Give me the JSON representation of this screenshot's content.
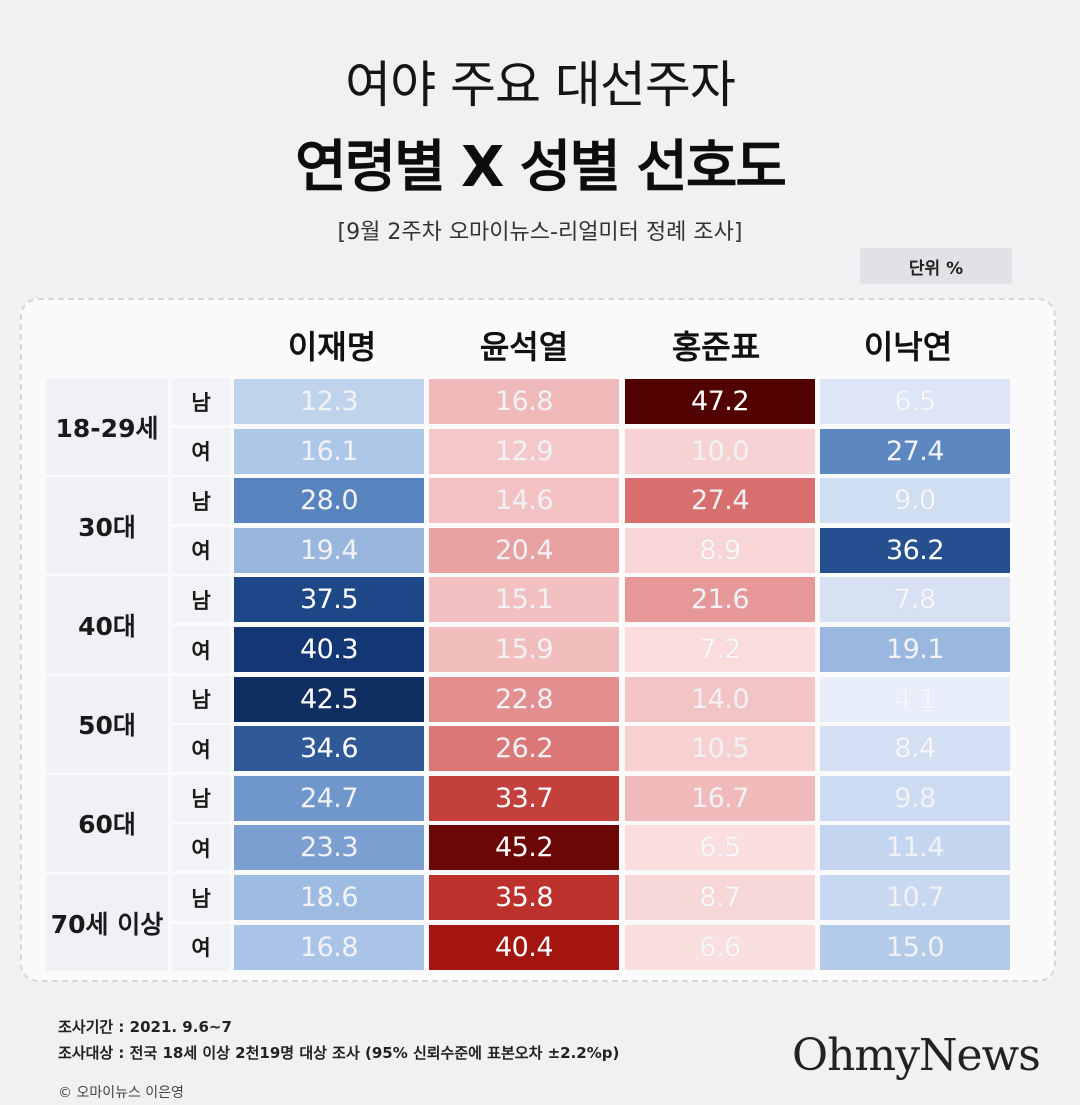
{
  "title_line1": "여야 주요 대선주자",
  "title_line2": "연령별 X 성별 선호도",
  "subtitle": "[9월 2주차 오마이뉴스-리얼미터 정례 조사]",
  "unit_label": "단위 %",
  "footer": {
    "period": "조사기간 : 2021. 9.6~7",
    "target": "조사대상 : 전국 18세 이상 2천19명 대상 조사 (95% 신뢰수준에 표본오차 ±2.2%p)",
    "copyright": "© 오마이뉴스 이은영",
    "logo": "OhmyNews"
  },
  "colors": {
    "blue_dark": "#0a1631",
    "red_dark": "#4a0000",
    "light_text": "#e9ecf3"
  },
  "chart_data": {
    "type": "heatmap",
    "candidates": [
      "이재명",
      "윤석열",
      "홍준표",
      "이낙연"
    ],
    "candidate_palette": [
      "blue",
      "red",
      "red",
      "blue"
    ],
    "age_groups": [
      "18-29세",
      "30대",
      "40대",
      "50대",
      "60대",
      "70세 이상"
    ],
    "sexes": [
      "남",
      "여"
    ],
    "rows": [
      {
        "age": "18-29세",
        "sex": "남",
        "values": [
          12.3,
          16.8,
          47.2,
          6.5
        ]
      },
      {
        "age": "18-29세",
        "sex": "여",
        "values": [
          16.1,
          12.9,
          10.0,
          27.4
        ]
      },
      {
        "age": "30대",
        "sex": "남",
        "values": [
          28.0,
          14.6,
          27.4,
          9.0
        ]
      },
      {
        "age": "30대",
        "sex": "여",
        "values": [
          19.4,
          20.4,
          8.9,
          36.2
        ]
      },
      {
        "age": "40대",
        "sex": "남",
        "values": [
          37.5,
          15.1,
          21.6,
          7.8
        ]
      },
      {
        "age": "40대",
        "sex": "여",
        "values": [
          40.3,
          15.9,
          7.2,
          19.1
        ]
      },
      {
        "age": "50대",
        "sex": "남",
        "values": [
          42.5,
          22.8,
          14.0,
          4.1
        ]
      },
      {
        "age": "50대",
        "sex": "여",
        "values": [
          34.6,
          26.2,
          10.5,
          8.4
        ]
      },
      {
        "age": "60대",
        "sex": "남",
        "values": [
          24.7,
          33.7,
          16.7,
          9.8
        ]
      },
      {
        "age": "60대",
        "sex": "여",
        "values": [
          23.3,
          45.2,
          6.5,
          11.4
        ]
      },
      {
        "age": "70세 이상",
        "sex": "남",
        "values": [
          18.6,
          35.8,
          8.7,
          10.7
        ]
      },
      {
        "age": "70세 이상",
        "sex": "여",
        "values": [
          16.8,
          40.4,
          6.6,
          15.0
        ]
      }
    ],
    "value_labels_formatted": [
      [
        "12.3",
        "16.8",
        "47.2",
        "6.5"
      ],
      [
        "16.1",
        "12.9",
        "10.0",
        "27.4"
      ],
      [
        "28.0",
        "14.6",
        "27.4",
        "9.0"
      ],
      [
        "19.4",
        "20.4",
        "8.9",
        "36.2"
      ],
      [
        "37.5",
        "15.1",
        "21.6",
        "7.8"
      ],
      [
        "40.3",
        "15.9",
        "7.2",
        "19.1"
      ],
      [
        "42.5",
        "22.8",
        "14.0",
        "4.1"
      ],
      [
        "34.6",
        "26.2",
        "10.5",
        "8.4"
      ],
      [
        "24.7",
        "33.7",
        "16.7",
        "9.8"
      ],
      [
        "23.3",
        "45.2",
        "6.5",
        "11.4"
      ],
      [
        "18.6",
        "35.8",
        "8.7",
        "10.7"
      ],
      [
        "16.8",
        "40.4",
        "6.6",
        "15.0"
      ]
    ]
  }
}
